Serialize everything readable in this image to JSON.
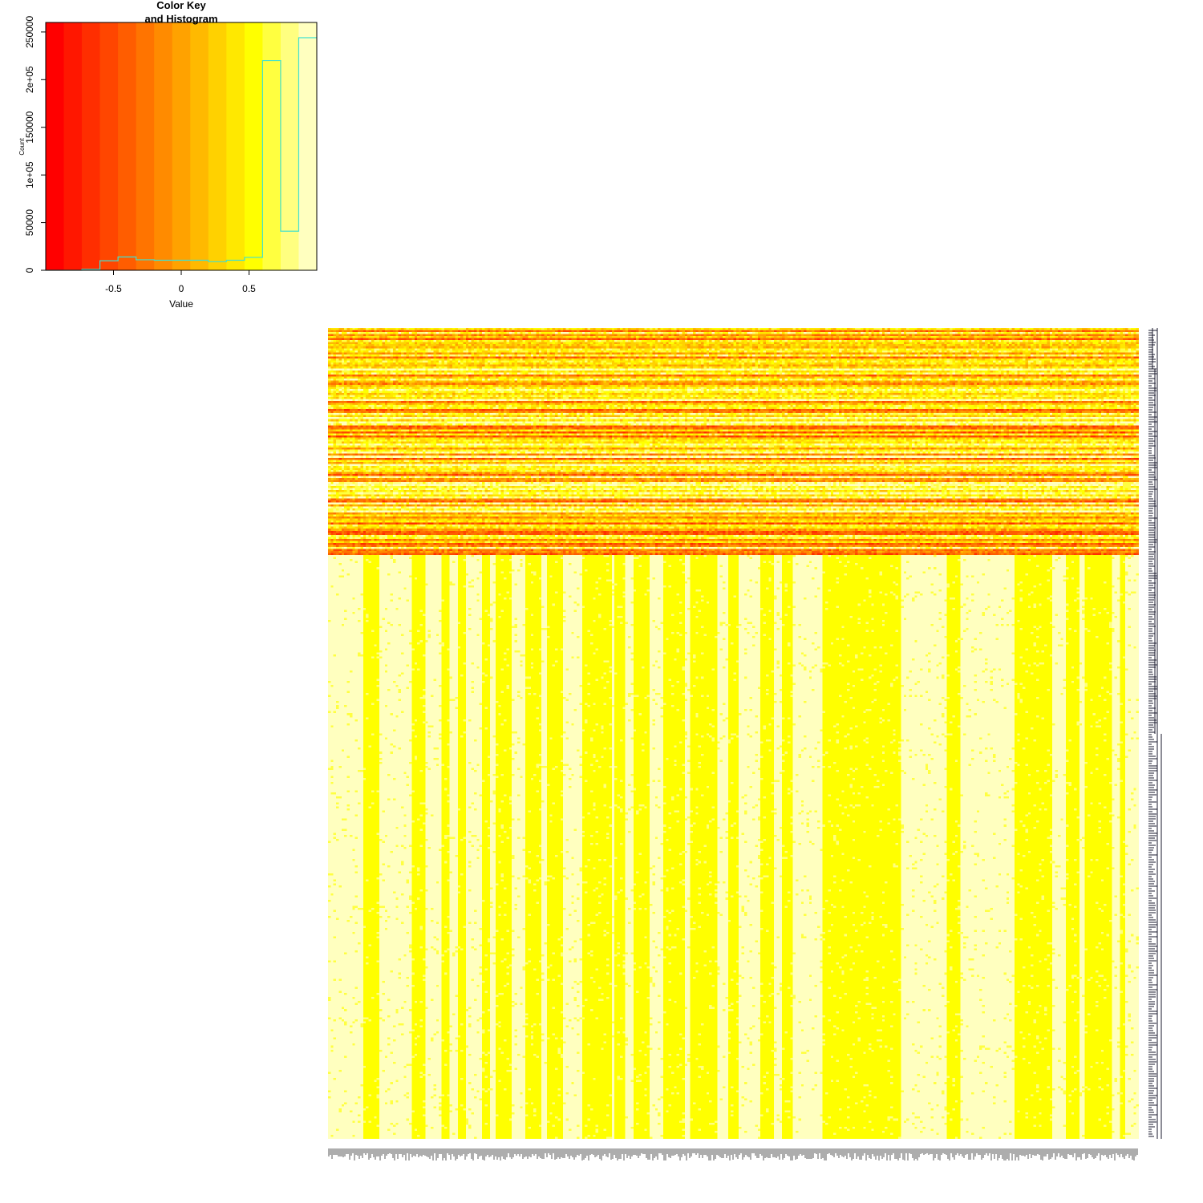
{
  "chart_data": [
    {
      "type": "bar",
      "role": "color-key-histogram",
      "title": "Color Key\nand Histogram",
      "title_lines": [
        "Color Key",
        "and Histogram"
      ],
      "xlabel": "Value",
      "ylabel": "Count",
      "xlim": [
        -1,
        1
      ],
      "ylim": [
        0,
        260000
      ],
      "x_ticks": [
        -0.5,
        0,
        0.5
      ],
      "x_tick_labels": [
        "-0.5",
        "0",
        "0.5"
      ],
      "y_ticks": [
        0,
        50000,
        100000,
        150000,
        200000,
        250000
      ],
      "y_tick_labels": [
        "0",
        "50000",
        "1e+05",
        "150000",
        "2e+05",
        "250000"
      ],
      "bin_edges": [
        -1.0,
        -0.8667,
        -0.7333,
        -0.6,
        -0.4667,
        -0.3333,
        -0.2,
        -0.0667,
        0.0667,
        0.2,
        0.3333,
        0.4667,
        0.6,
        0.7333,
        0.8667,
        1.0
      ],
      "counts": [
        0,
        0,
        1000,
        10000,
        14000,
        11000,
        10500,
        10500,
        10500,
        9000,
        10500,
        13500,
        220000,
        41000,
        244000
      ],
      "bin_colors": [
        "#FF0000",
        "#FF1700",
        "#FF2E00",
        "#FF4600",
        "#FF5D00",
        "#FF7400",
        "#FF8B00",
        "#FFA200",
        "#FFB900",
        "#FFD100",
        "#FFE800",
        "#FFFF00",
        "#FFFF40",
        "#FFFF80",
        "#FFFFBF"
      ],
      "histogram_line_color": "#40E0D0"
    },
    {
      "type": "heatmap",
      "role": "main-heatmap",
      "palette": [
        "#FF0000",
        "#FF1700",
        "#FF2E00",
        "#FF4600",
        "#FF5D00",
        "#FF7400",
        "#FF8B00",
        "#FFA200",
        "#FFB900",
        "#FFD100",
        "#FFE800",
        "#FFFF00",
        "#FFFF40",
        "#FFFF80",
        "#FFFFBF"
      ],
      "value_range": [
        -1,
        1
      ],
      "column_count": 300,
      "row_count": 400,
      "upper_block_row_fraction": 0.28,
      "upper_block": "mixed orange/red/yellow rows, row-dominant pattern",
      "lower_block": "yellow and pale-yellow column stripes, column-dominant pattern",
      "row_dendrogram_side": "right",
      "column_labels": "dense numeric labels along bottom, unreadable"
    }
  ]
}
